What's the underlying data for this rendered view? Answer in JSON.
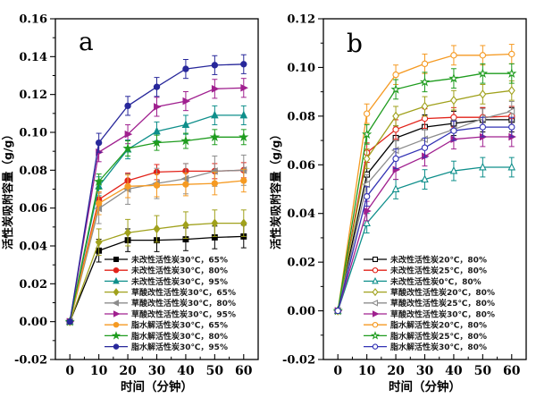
{
  "figure": {
    "background": "#ffffff",
    "text_color": "#000000",
    "legend_text_color": "#1c1c1c"
  },
  "chart_data": [
    {
      "type": "line",
      "panel_label": "a",
      "xlabel": "时间（分钟）",
      "ylabel": "活性炭吸附容量（g/g）",
      "x": [
        0,
        10,
        20,
        30,
        40,
        50,
        60
      ],
      "xlim": [
        -5,
        65
      ],
      "ylim": [
        -0.02,
        0.16
      ],
      "xticks": [
        0,
        10,
        20,
        30,
        40,
        50,
        60
      ],
      "yticks": [
        -0.02,
        0.0,
        0.02,
        0.04,
        0.06,
        0.08,
        0.1,
        0.12,
        0.14,
        0.16
      ],
      "minor_x_step": 5,
      "minor_y_step": 0.01,
      "grid": false,
      "error_bars": true,
      "legend_position": "inside-lower-right",
      "series": [
        {
          "name": "未改性活性炭30℃，65%",
          "marker": "square",
          "filled": true,
          "color": "#000000",
          "err": 0.006,
          "values": [
            0,
            0.0375,
            0.043,
            0.043,
            0.0435,
            0.0445,
            0.045
          ]
        },
        {
          "name": "未改性活性炭30℃，80%",
          "marker": "circle",
          "filled": true,
          "color": "#e2231a",
          "err": 0.004,
          "values": [
            0,
            0.0645,
            0.0745,
            0.079,
            0.0795,
            0.0795,
            0.08
          ]
        },
        {
          "name": "未改性活性炭30℃，95%",
          "marker": "triangle-up",
          "filled": true,
          "color": "#0f8f8b",
          "err": 0.005,
          "values": [
            0,
            0.0715,
            0.091,
            0.1005,
            0.104,
            0.109,
            0.109
          ]
        },
        {
          "name": "草酸改性活性炭30℃，65%",
          "marker": "diamond",
          "filled": true,
          "color": "#a0a11c",
          "err": 0.007,
          "values": [
            0,
            0.042,
            0.047,
            0.049,
            0.051,
            0.052,
            0.052
          ]
        },
        {
          "name": "草酸改性活性炭30℃，80%",
          "marker": "triangle-left",
          "filled": true,
          "color": "#8c8c8c",
          "err": 0.008,
          "values": [
            0,
            0.0598,
            0.07,
            0.073,
            0.0755,
            0.0795,
            0.08
          ]
        },
        {
          "name": "草酸改性活性炭30℃，95%",
          "marker": "triangle-right",
          "filled": true,
          "color": "#a0208f",
          "err": 0.005,
          "values": [
            0,
            0.0895,
            0.099,
            0.1135,
            0.1165,
            0.123,
            0.1235
          ]
        },
        {
          "name": "脂水解活性炭30℃，65%",
          "marker": "circle",
          "filled": true,
          "color": "#f59a23",
          "err": 0.006,
          "values": [
            0,
            0.0625,
            0.0715,
            0.072,
            0.0725,
            0.073,
            0.0745
          ]
        },
        {
          "name": "脂水解活性炭30℃，80%",
          "marker": "star",
          "filled": true,
          "color": "#1f9c1f",
          "err": 0.004,
          "values": [
            0,
            0.074,
            0.0915,
            0.0945,
            0.0955,
            0.0975,
            0.0975
          ]
        },
        {
          "name": "脂水解活性炭30℃，95%",
          "marker": "circle",
          "filled": true,
          "color": "#28289b",
          "err": 0.005,
          "values": [
            0,
            0.0945,
            0.114,
            0.124,
            0.1335,
            0.1355,
            0.136
          ]
        }
      ]
    },
    {
      "type": "line",
      "panel_label": "b",
      "xlabel": "时间（分钟）",
      "ylabel": "活性炭吸附容量（g/g）",
      "x": [
        0,
        10,
        20,
        30,
        40,
        50,
        60
      ],
      "xlim": [
        -5,
        65
      ],
      "ylim": [
        -0.02,
        0.12
      ],
      "xticks": [
        0,
        10,
        20,
        30,
        40,
        50,
        60
      ],
      "yticks": [
        -0.02,
        0.0,
        0.02,
        0.04,
        0.06,
        0.08,
        0.1,
        0.12
      ],
      "minor_x_step": 5,
      "minor_y_step": 0.01,
      "grid": false,
      "error_bars": true,
      "legend_position": "inside-lower-right",
      "series": [
        {
          "name": "未改性活性炭20℃，80%",
          "marker": "square",
          "filled": false,
          "color": "#000000",
          "err": 0.005,
          "values": [
            0,
            0.056,
            0.071,
            0.0755,
            0.077,
            0.0785,
            0.0785
          ]
        },
        {
          "name": "未改性活性炭25℃，80%",
          "marker": "circle",
          "filled": false,
          "color": "#e2231a",
          "err": 0.004,
          "values": [
            0,
            0.065,
            0.0745,
            0.079,
            0.0795,
            0.0795,
            0.08
          ]
        },
        {
          "name": "未改性活性炭0℃，80%",
          "marker": "triangle-up",
          "filled": false,
          "color": "#0f8f8b",
          "err": 0.004,
          "values": [
            0,
            0.036,
            0.05,
            0.054,
            0.0575,
            0.059,
            0.059
          ]
        },
        {
          "name": "草酸改性活性炭20℃，80%",
          "marker": "diamond",
          "filled": false,
          "color": "#a0a11c",
          "err": 0.004,
          "values": [
            0,
            0.0625,
            0.08,
            0.084,
            0.0865,
            0.089,
            0.0905
          ]
        },
        {
          "name": "草酸改性活性炭25℃，80%",
          "marker": "triangle-left",
          "filled": false,
          "color": "#8c8c8c",
          "err": 0.004,
          "values": [
            0,
            0.052,
            0.066,
            0.0705,
            0.0745,
            0.079,
            0.082
          ]
        },
        {
          "name": "草酸改性活性炭30℃，80%",
          "marker": "triangle-right",
          "filled": true,
          "color": "#a0208f",
          "err": 0.004,
          "values": [
            0,
            0.041,
            0.058,
            0.0635,
            0.0705,
            0.0715,
            0.0715
          ]
        },
        {
          "name": "脂水解活性炭20℃，80%",
          "marker": "circle",
          "filled": false,
          "color": "#f59a23",
          "err": 0.004,
          "values": [
            0,
            0.081,
            0.097,
            0.1015,
            0.105,
            0.105,
            0.1055
          ]
        },
        {
          "name": "脂水解活性炭25℃，80%",
          "marker": "star",
          "filled": false,
          "color": "#1f9c1f",
          "err": 0.004,
          "values": [
            0,
            0.0725,
            0.091,
            0.094,
            0.0955,
            0.0975,
            0.0975
          ]
        },
        {
          "name": "脂水解活性炭30℃，80%",
          "marker": "circle",
          "filled": false,
          "color": "#3232b4",
          "err": 0.004,
          "values": [
            0,
            0.047,
            0.0625,
            0.067,
            0.074,
            0.0755,
            0.0755
          ]
        }
      ]
    }
  ]
}
